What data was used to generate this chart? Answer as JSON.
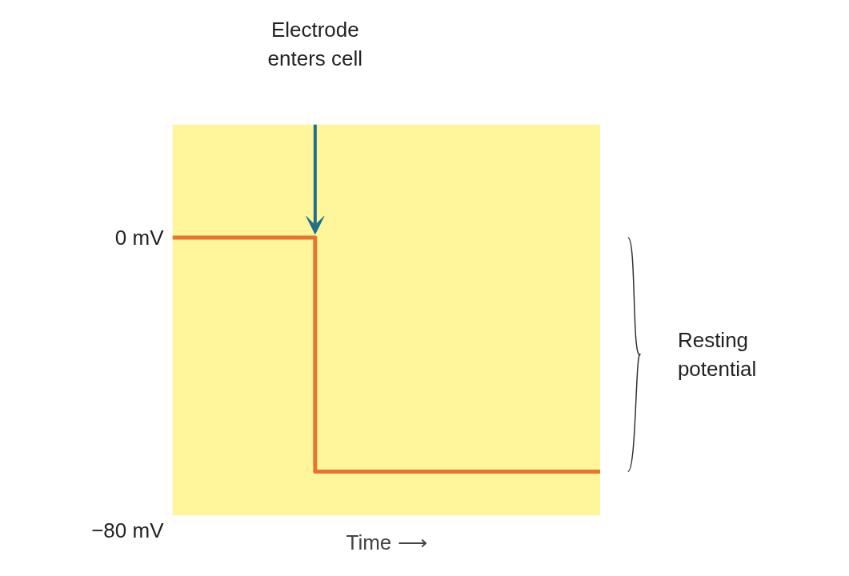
{
  "chart_data": {
    "type": "step",
    "categories": [
      null,
      null,
      null,
      null,
      null,
      null,
      null,
      null,
      null,
      null
    ],
    "values": [
      0,
      0,
      0,
      -64,
      -64,
      -64,
      -64,
      -64,
      -64,
      -64
    ],
    "color": "#e8742f",
    "ylim": [
      -80,
      31
    ],
    "yticks": [
      {
        "value": 0,
        "label": "0 mV"
      },
      {
        "value": -80,
        "label": "−80 mV"
      }
    ],
    "xlabel": "Time ⟶",
    "annotations": [
      "Electrode\nenters cell",
      "Resting\npotential"
    ]
  }
}
